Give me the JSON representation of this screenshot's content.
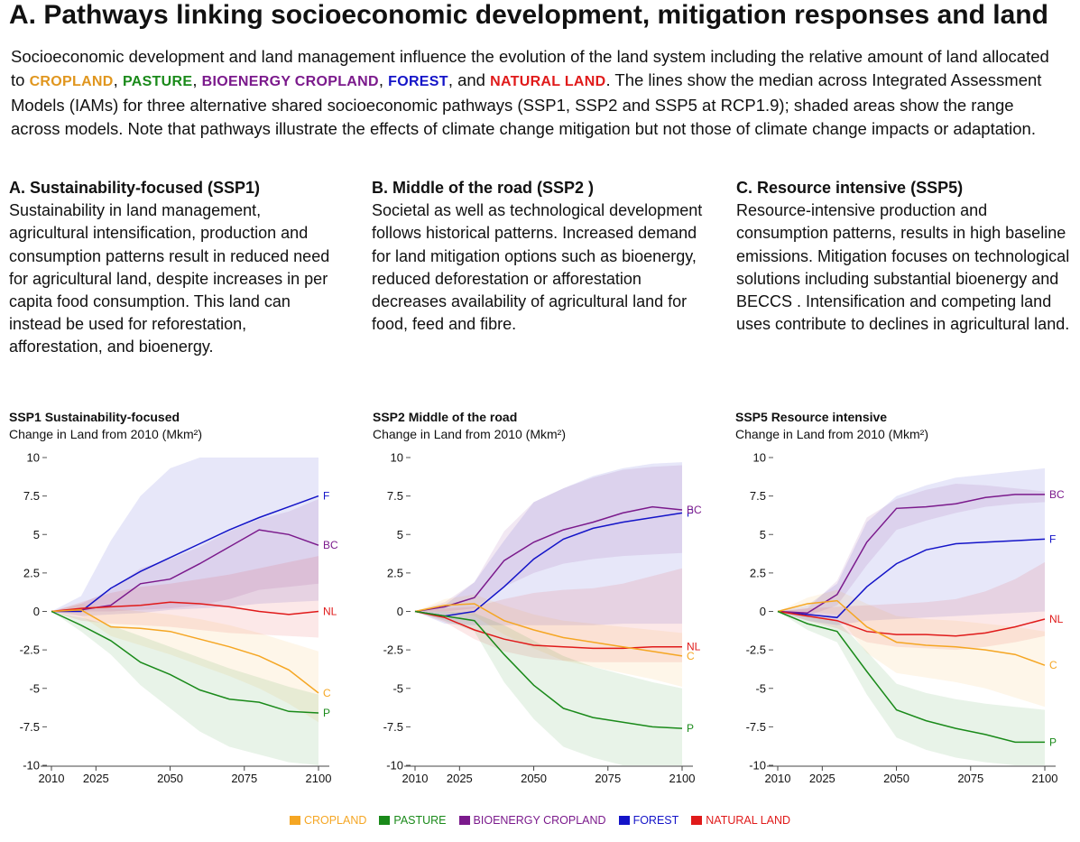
{
  "title": "A. Pathways linking socioeconomic development, mitigation responses and land",
  "intro": {
    "p1": "Socioeconomic development and land management influence the evolution of the land system including the relative amount of land allocated to ",
    "kw_cropland": "CROPLAND",
    "sep1": ", ",
    "kw_pasture": "PASTURE",
    "sep2": ", ",
    "kw_bioenergy": "BIOENERGY CROPLAND",
    "sep3": ", ",
    "kw_forest": "FOREST",
    "sep4": ", and ",
    "kw_natural": "NATURAL LAND",
    "p2": ". The lines show the median across Integrated Assessment Models (IAMs) for three alternative shared socioeconomic pathways (SSP1, SSP2 and SSP5 at RCP1.9); shaded areas show the range across models. Note that pathways illustrate the effects of climate change mitigation but not those of climate change impacts or adaptation."
  },
  "columns": [
    {
      "heading": "A. Sustainability-focused (SSP1)",
      "body": "Sustainability in land management, agricultural intensification,  production and consumption patterns result in reduced need for agricultural land, despite increases in per capita food consumption. This land can instead be used for reforestation, afforestation, and bioenergy."
    },
    {
      "heading": "B. Middle of the road (SSP2 )",
      "body": "Societal as well as technological development follows historical patterns. Increased demand for land mitigation options such as bioenergy, reduced deforestation or afforestation decreases availability of agricultural land for food, feed and fibre."
    },
    {
      "heading": "C. Resource intensive (SSP5)",
      "body": "Resource-intensive production and consumption patterns,  results in high baseline emissions. Mitigation focuses on technological solutions including substantial bioenergy and BECCS . Intensification and competing land uses contribute to declines in agricultural land."
    }
  ],
  "colors": {
    "cropland": "#f5a623",
    "pasture": "#1a8a1a",
    "bioenergy": "#7b1a8c",
    "forest": "#1414c8",
    "natural": "#e01a1a"
  },
  "legend": [
    {
      "key": "cropland",
      "label": "CROPLAND"
    },
    {
      "key": "pasture",
      "label": "PASTURE"
    },
    {
      "key": "bioenergy",
      "label": "BIOENERGY CROPLAND"
    },
    {
      "key": "forest",
      "label": "FOREST"
    },
    {
      "key": "natural",
      "label": "NATURAL LAND"
    }
  ],
  "chart_data": [
    {
      "type": "line",
      "title": "SSP1 Sustainability-focused",
      "ylabel": "Change in Land from 2010 (Mkm²)",
      "x": [
        2010,
        2020,
        2030,
        2040,
        2050,
        2060,
        2070,
        2080,
        2090,
        2100
      ],
      "xticks": [
        2010,
        2025,
        2050,
        2075,
        2100
      ],
      "yticks": [
        10,
        7.5,
        5,
        2.5,
        0,
        -2.5,
        -5,
        -7.5,
        -10
      ],
      "ytick_labels": [
        "10",
        "7.5",
        "5",
        "2.5",
        "0",
        "-2.5",
        "-5",
        "-7.5",
        "-10"
      ],
      "ylim": [
        -10,
        10
      ],
      "series": [
        {
          "key": "cropland",
          "end_label": "C",
          "values": [
            0,
            0.1,
            -1.0,
            -1.1,
            -1.3,
            -1.8,
            -2.3,
            -2.9,
            -3.8,
            -5.3
          ],
          "range_low": [
            0,
            -0.3,
            -1.6,
            -2.2,
            -2.8,
            -3.5,
            -4.2,
            -5.0,
            -6.0,
            -7.2
          ],
          "range_high": [
            0,
            0.5,
            0.2,
            0.0,
            -0.2,
            -0.5,
            -0.9,
            -1.4,
            -2.0,
            -2.6
          ]
        },
        {
          "key": "pasture",
          "end_label": "P",
          "values": [
            0,
            -0.9,
            -1.9,
            -3.3,
            -4.1,
            -5.1,
            -5.7,
            -5.9,
            -6.5,
            -6.6
          ],
          "range_low": [
            0,
            -1.3,
            -2.8,
            -4.8,
            -6.3,
            -7.8,
            -8.8,
            -9.3,
            -9.8,
            -10
          ],
          "range_high": [
            0,
            -0.4,
            -0.9,
            -1.6,
            -2.3,
            -3.0,
            -3.7,
            -4.3,
            -4.9,
            -5.4
          ]
        },
        {
          "key": "bioenergy",
          "end_label": "BC",
          "values": [
            0,
            0.1,
            0.4,
            1.8,
            2.1,
            3.1,
            4.2,
            5.3,
            5.0,
            4.3
          ],
          "range_low": [
            0,
            0.0,
            0.0,
            0.1,
            0.2,
            0.4,
            0.8,
            1.4,
            1.6,
            1.8
          ],
          "range_high": [
            0,
            0.5,
            1.4,
            2.8,
            3.4,
            4.2,
            5.2,
            6.0,
            6.5,
            7.3
          ]
        },
        {
          "key": "forest",
          "end_label": "F",
          "values": [
            0,
            0.0,
            1.5,
            2.6,
            3.5,
            4.4,
            5.3,
            6.1,
            6.8,
            7.5
          ],
          "range_low": [
            0,
            -0.3,
            -0.2,
            -0.1,
            0.1,
            0.2,
            0.3,
            0.5,
            0.6,
            0.7
          ],
          "range_high": [
            0,
            1.0,
            4.6,
            7.5,
            9.3,
            10,
            10,
            10,
            10,
            10
          ]
        },
        {
          "key": "natural",
          "end_label": "NL",
          "values": [
            0,
            0.2,
            0.3,
            0.4,
            0.6,
            0.5,
            0.3,
            0.0,
            -0.2,
            0.0
          ],
          "range_low": [
            0,
            -0.6,
            -0.8,
            -0.9,
            -1.0,
            -1.2,
            -1.4,
            -1.5,
            -1.6,
            -1.7
          ],
          "range_high": [
            0,
            0.6,
            1.2,
            1.6,
            1.8,
            2.1,
            2.4,
            2.8,
            3.2,
            3.6
          ]
        }
      ]
    },
    {
      "type": "line",
      "title": "SSP2 Middle of the road",
      "ylabel": "Change in Land from 2010 (Mkm²)",
      "x": [
        2010,
        2020,
        2030,
        2040,
        2050,
        2060,
        2070,
        2080,
        2090,
        2100
      ],
      "xticks": [
        2010,
        2025,
        2050,
        2075,
        2100
      ],
      "yticks": [
        10,
        7.5,
        5,
        2.5,
        0,
        -2.5,
        -5,
        -7.5,
        -10
      ],
      "ytick_labels": [
        "10",
        "7.5",
        "5",
        "2.5",
        "0",
        "-2.5",
        "-5",
        "-7.5",
        "-10"
      ],
      "ylim": [
        -10,
        10
      ],
      "series": [
        {
          "key": "cropland",
          "end_label": "C",
          "values": [
            0,
            0.4,
            0.5,
            -0.6,
            -1.2,
            -1.7,
            -2.0,
            -2.3,
            -2.6,
            -2.9
          ],
          "range_low": [
            0,
            0.0,
            -0.3,
            -1.5,
            -2.4,
            -3.2,
            -3.6,
            -4.0,
            -4.4,
            -4.9
          ],
          "range_high": [
            0,
            0.8,
            1.1,
            0.4,
            -0.2,
            -0.6,
            -0.8,
            -1.0,
            -1.2,
            -1.4
          ]
        },
        {
          "key": "pasture",
          "end_label": "P",
          "values": [
            0,
            -0.3,
            -0.6,
            -2.8,
            -4.8,
            -6.3,
            -6.9,
            -7.2,
            -7.5,
            -7.6
          ],
          "range_low": [
            0,
            -0.6,
            -1.3,
            -4.6,
            -7.0,
            -8.8,
            -9.5,
            -10,
            -10,
            -10
          ],
          "range_high": [
            0,
            0.0,
            -0.1,
            -0.9,
            -1.9,
            -2.9,
            -3.6,
            -4.1,
            -4.6,
            -5.0
          ]
        },
        {
          "key": "bioenergy",
          "end_label": "BC",
          "values": [
            0,
            0.3,
            0.9,
            3.3,
            4.5,
            5.3,
            5.8,
            6.4,
            6.8,
            6.6
          ],
          "range_low": [
            0,
            0.0,
            0.2,
            1.6,
            2.5,
            3.1,
            3.4,
            3.6,
            3.7,
            3.8
          ],
          "range_high": [
            0,
            0.6,
            1.9,
            5.2,
            7.1,
            8.0,
            8.7,
            9.2,
            9.4,
            9.5
          ]
        },
        {
          "key": "forest",
          "end_label": "F",
          "values": [
            0,
            -0.3,
            0.0,
            1.6,
            3.4,
            4.7,
            5.4,
            5.8,
            6.1,
            6.4
          ],
          "range_low": [
            0,
            -0.8,
            -0.9,
            -0.9,
            -0.9,
            -0.9,
            -0.9,
            -0.8,
            -0.8,
            -0.8
          ],
          "range_high": [
            0,
            0.4,
            1.9,
            4.6,
            7.1,
            8.0,
            8.8,
            9.3,
            9.6,
            9.7
          ]
        },
        {
          "key": "natural",
          "end_label": "NL",
          "values": [
            0,
            -0.4,
            -1.2,
            -1.8,
            -2.2,
            -2.3,
            -2.4,
            -2.4,
            -2.3,
            -2.3
          ],
          "range_low": [
            0,
            -0.7,
            -1.8,
            -2.6,
            -3.0,
            -3.2,
            -3.3,
            -3.3,
            -3.3,
            -3.3
          ],
          "range_high": [
            0,
            0.2,
            0.3,
            0.8,
            1.2,
            1.4,
            1.5,
            1.8,
            2.3,
            2.8
          ]
        }
      ]
    },
    {
      "type": "line",
      "title": "SSP5 Resource intensive",
      "ylabel": "Change in Land from 2010 (Mkm²)",
      "x": [
        2010,
        2020,
        2030,
        2040,
        2050,
        2060,
        2070,
        2080,
        2090,
        2100
      ],
      "xticks": [
        2010,
        2025,
        2050,
        2075,
        2100
      ],
      "yticks": [
        10,
        7.5,
        5,
        2.5,
        0,
        -2.5,
        -5,
        -7.5,
        -10
      ],
      "ytick_labels": [
        "10",
        "7.5",
        "5",
        "2.5",
        "0",
        "-2.5",
        "-5",
        "-7.5",
        "-10"
      ],
      "ylim": [
        -10,
        10
      ],
      "series": [
        {
          "key": "cropland",
          "end_label": "C",
          "values": [
            0,
            0.5,
            0.7,
            -1.0,
            -2.0,
            -2.2,
            -2.3,
            -2.5,
            -2.8,
            -3.5
          ],
          "range_low": [
            0,
            0.0,
            -0.2,
            -2.7,
            -4.0,
            -4.3,
            -4.6,
            -5.0,
            -5.6,
            -6.2
          ],
          "range_high": [
            0,
            0.9,
            1.4,
            0.5,
            -0.3,
            -0.5,
            -0.6,
            -0.8,
            -1.0,
            -1.3
          ]
        },
        {
          "key": "pasture",
          "end_label": "P",
          "values": [
            0,
            -0.8,
            -1.3,
            -3.9,
            -6.4,
            -7.1,
            -7.6,
            -8.0,
            -8.5,
            -8.5
          ],
          "range_low": [
            0,
            -1.2,
            -2.0,
            -5.4,
            -8.2,
            -9.0,
            -9.5,
            -9.8,
            -10,
            -10
          ],
          "range_high": [
            0,
            -0.3,
            -0.6,
            -2.6,
            -4.7,
            -5.3,
            -5.7,
            -6.0,
            -6.2,
            -6.4
          ]
        },
        {
          "key": "bioenergy",
          "end_label": "BC",
          "values": [
            0,
            -0.1,
            1.1,
            4.5,
            6.7,
            6.8,
            7.0,
            7.4,
            7.6,
            7.6
          ],
          "range_low": [
            0,
            -0.3,
            0.4,
            3.0,
            5.3,
            5.9,
            6.4,
            6.8,
            7.0,
            7.1
          ],
          "range_high": [
            0,
            0.2,
            2.0,
            6.1,
            7.3,
            7.9,
            8.3,
            8.2,
            8.0,
            7.8
          ]
        },
        {
          "key": "forest",
          "end_label": "F",
          "values": [
            0,
            -0.2,
            -0.4,
            1.6,
            3.1,
            4.0,
            4.4,
            4.5,
            4.6,
            4.7
          ],
          "range_low": [
            0,
            -0.6,
            -0.9,
            -0.6,
            -0.5,
            -0.4,
            -0.3,
            -0.2,
            -0.1,
            0.0
          ],
          "range_high": [
            0,
            0.4,
            1.8,
            5.8,
            7.5,
            8.2,
            8.7,
            8.9,
            9.1,
            9.3
          ]
        },
        {
          "key": "natural",
          "end_label": "NL",
          "values": [
            0,
            -0.3,
            -0.6,
            -1.3,
            -1.5,
            -1.5,
            -1.6,
            -1.4,
            -1.0,
            -0.5
          ],
          "range_low": [
            0,
            -0.6,
            -1.1,
            -2.0,
            -2.3,
            -2.4,
            -2.5,
            -2.3,
            -2.0,
            -1.6
          ],
          "range_high": [
            0,
            0.2,
            0.3,
            0.4,
            0.5,
            0.6,
            0.8,
            1.3,
            2.1,
            3.2
          ]
        }
      ]
    }
  ]
}
